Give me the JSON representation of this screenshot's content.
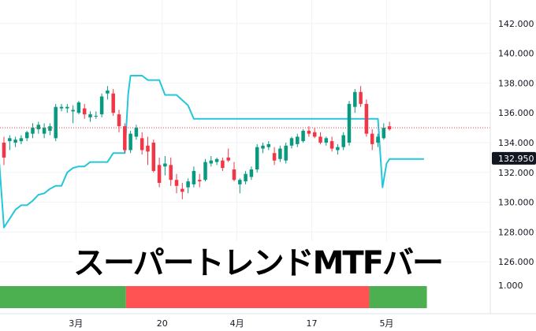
{
  "caption": "スーパートレンドMTFバー",
  "chart_data": {
    "type": "candlestick",
    "colors": {
      "up": "#089981",
      "down": "#f23645",
      "supertrend": "#26c6da",
      "bar_up": "#4caf50",
      "bar_down": "#ff5252",
      "grid": "#f0f3fa",
      "price_label_bg": "#131722",
      "price_line": "#f23645"
    },
    "price_axis": {
      "ticks": [
        "126.000",
        "128.000",
        "130.000",
        "132.000",
        "134.000",
        "136.000",
        "138.000",
        "140.000",
        "142.000"
      ]
    },
    "current_price": {
      "value": 132.95,
      "label": "132.950"
    },
    "ref_line": 135.0,
    "lower_pane_label": "1.000",
    "x_labels": [
      "3月",
      "20",
      "4月",
      "17",
      "5月"
    ],
    "x_label_at": [
      12.5,
      27.5,
      40.5,
      53.5,
      66.5
    ],
    "candles": [
      {
        "o": 134.0,
        "h": 134.4,
        "l": 132.5,
        "c": 133.0
      },
      {
        "o": 134.1,
        "h": 134.5,
        "l": 133.5,
        "c": 134.3
      },
      {
        "o": 134.0,
        "h": 134.4,
        "l": 133.7,
        "c": 134.2
      },
      {
        "o": 134.1,
        "h": 134.5,
        "l": 133.9,
        "c": 134.3
      },
      {
        "o": 134.3,
        "h": 134.8,
        "l": 134.1,
        "c": 134.7
      },
      {
        "o": 134.6,
        "h": 135.3,
        "l": 134.3,
        "c": 135.0
      },
      {
        "o": 134.9,
        "h": 135.4,
        "l": 134.6,
        "c": 135.2
      },
      {
        "o": 134.6,
        "h": 135.3,
        "l": 134.3,
        "c": 135.0
      },
      {
        "o": 134.8,
        "h": 135.3,
        "l": 134.5,
        "c": 135.1
      },
      {
        "o": 134.3,
        "h": 136.6,
        "l": 134.1,
        "c": 136.4
      },
      {
        "o": 136.3,
        "h": 136.6,
        "l": 136.1,
        "c": 136.4
      },
      {
        "o": 136.3,
        "h": 136.6,
        "l": 136.0,
        "c": 136.4
      },
      {
        "o": 136.1,
        "h": 136.5,
        "l": 135.3,
        "c": 136.2
      },
      {
        "o": 136.0,
        "h": 136.8,
        "l": 135.9,
        "c": 136.7
      },
      {
        "o": 136.3,
        "h": 136.6,
        "l": 135.6,
        "c": 135.9
      },
      {
        "o": 135.7,
        "h": 136.1,
        "l": 135.4,
        "c": 135.9
      },
      {
        "o": 135.8,
        "h": 136.1,
        "l": 135.6,
        "c": 135.8
      },
      {
        "o": 135.9,
        "h": 137.3,
        "l": 135.7,
        "c": 137.1
      },
      {
        "o": 137.3,
        "h": 137.8,
        "l": 136.9,
        "c": 137.5
      },
      {
        "o": 137.3,
        "h": 137.6,
        "l": 135.8,
        "c": 136.0
      },
      {
        "o": 135.9,
        "h": 136.2,
        "l": 134.7,
        "c": 135.1
      },
      {
        "o": 135.1,
        "h": 135.3,
        "l": 133.3,
        "c": 133.5
      },
      {
        "o": 133.5,
        "h": 134.8,
        "l": 133.3,
        "c": 134.6
      },
      {
        "o": 134.4,
        "h": 135.2,
        "l": 134.2,
        "c": 135.0
      },
      {
        "o": 134.3,
        "h": 134.7,
        "l": 133.2,
        "c": 133.5
      },
      {
        "o": 133.8,
        "h": 134.4,
        "l": 132.5,
        "c": 133.4
      },
      {
        "o": 134.0,
        "h": 134.2,
        "l": 132.0,
        "c": 132.1
      },
      {
        "o": 132.5,
        "h": 133.0,
        "l": 131.0,
        "c": 131.3
      },
      {
        "o": 132.4,
        "h": 133.1,
        "l": 131.8,
        "c": 132.6
      },
      {
        "o": 132.5,
        "h": 133.0,
        "l": 131.1,
        "c": 131.5
      },
      {
        "o": 131.5,
        "h": 131.9,
        "l": 130.6,
        "c": 131.1
      },
      {
        "o": 130.9,
        "h": 131.3,
        "l": 130.2,
        "c": 130.7
      },
      {
        "o": 131.0,
        "h": 131.6,
        "l": 130.6,
        "c": 131.4
      },
      {
        "o": 131.2,
        "h": 132.4,
        "l": 131.0,
        "c": 132.1
      },
      {
        "o": 131.5,
        "h": 131.9,
        "l": 131.0,
        "c": 131.4
      },
      {
        "o": 131.5,
        "h": 132.9,
        "l": 131.4,
        "c": 132.7
      },
      {
        "o": 132.6,
        "h": 133.1,
        "l": 132.4,
        "c": 132.8
      },
      {
        "o": 132.7,
        "h": 133.0,
        "l": 132.5,
        "c": 132.9
      },
      {
        "o": 132.8,
        "h": 133.0,
        "l": 132.1,
        "c": 132.3
      },
      {
        "o": 133.0,
        "h": 133.6,
        "l": 132.7,
        "c": 132.8
      },
      {
        "o": 132.2,
        "h": 132.7,
        "l": 131.4,
        "c": 131.5
      },
      {
        "o": 131.2,
        "h": 131.6,
        "l": 130.6,
        "c": 131.5
      },
      {
        "o": 131.4,
        "h": 132.1,
        "l": 131.2,
        "c": 131.9
      },
      {
        "o": 131.7,
        "h": 132.4,
        "l": 131.5,
        "c": 132.2
      },
      {
        "o": 132.2,
        "h": 133.9,
        "l": 132.0,
        "c": 133.7
      },
      {
        "o": 133.6,
        "h": 134.0,
        "l": 133.3,
        "c": 133.8
      },
      {
        "o": 133.7,
        "h": 134.1,
        "l": 133.5,
        "c": 133.9
      },
      {
        "o": 133.3,
        "h": 133.7,
        "l": 132.5,
        "c": 132.8
      },
      {
        "o": 132.9,
        "h": 133.8,
        "l": 132.7,
        "c": 133.6
      },
      {
        "o": 132.8,
        "h": 134.0,
        "l": 132.6,
        "c": 133.8
      },
      {
        "o": 133.8,
        "h": 134.4,
        "l": 133.6,
        "c": 134.3
      },
      {
        "o": 133.9,
        "h": 134.6,
        "l": 133.7,
        "c": 134.4
      },
      {
        "o": 134.1,
        "h": 134.9,
        "l": 134.0,
        "c": 134.8
      },
      {
        "o": 134.8,
        "h": 135.1,
        "l": 134.4,
        "c": 134.6
      },
      {
        "o": 134.7,
        "h": 135.0,
        "l": 134.3,
        "c": 134.4
      },
      {
        "o": 134.4,
        "h": 134.7,
        "l": 133.9,
        "c": 134.0
      },
      {
        "o": 134.0,
        "h": 134.4,
        "l": 133.8,
        "c": 134.3
      },
      {
        "o": 134.1,
        "h": 134.4,
        "l": 133.4,
        "c": 133.6
      },
      {
        "o": 133.5,
        "h": 133.9,
        "l": 133.2,
        "c": 133.7
      },
      {
        "o": 133.7,
        "h": 134.7,
        "l": 133.5,
        "c": 134.5
      },
      {
        "o": 134.0,
        "h": 136.8,
        "l": 133.8,
        "c": 136.6
      },
      {
        "o": 136.4,
        "h": 137.6,
        "l": 136.0,
        "c": 137.4
      },
      {
        "o": 137.4,
        "h": 137.8,
        "l": 136.4,
        "c": 136.6
      },
      {
        "o": 136.6,
        "h": 136.9,
        "l": 134.4,
        "c": 134.6
      },
      {
        "o": 134.6,
        "h": 134.9,
        "l": 133.5,
        "c": 133.9
      },
      {
        "o": 134.0,
        "h": 134.6,
        "l": 133.7,
        "c": 134.4
      },
      {
        "o": 134.3,
        "h": 135.3,
        "l": 134.2,
        "c": 135.0
      },
      {
        "o": 135.1,
        "h": 135.4,
        "l": 134.8,
        "c": 134.9
      }
    ],
    "supertrend": [
      [
        -1,
        133.7
      ],
      [
        0,
        128.3
      ],
      [
        1,
        128.9
      ],
      [
        2,
        129.5
      ],
      [
        3,
        129.8
      ],
      [
        4,
        129.8
      ],
      [
        5,
        130.1
      ],
      [
        6,
        130.5
      ],
      [
        7,
        130.6
      ],
      [
        8,
        130.9
      ],
      [
        9,
        131.1
      ],
      [
        10,
        131.1
      ],
      [
        11,
        132.0
      ],
      [
        12,
        132.3
      ],
      [
        13,
        132.4
      ],
      [
        14,
        132.4
      ],
      [
        15,
        132.7
      ],
      [
        16,
        132.7
      ],
      [
        17,
        132.7
      ],
      [
        18,
        132.7
      ],
      [
        19,
        133.3
      ],
      [
        20,
        133.3
      ],
      [
        21,
        133.3
      ],
      [
        21.6,
        137.3
      ],
      [
        22,
        138.5
      ],
      [
        24,
        138.5
      ],
      [
        25,
        138.2
      ],
      [
        27,
        138.2
      ],
      [
        28,
        137.2
      ],
      [
        30,
        137.2
      ],
      [
        32,
        136.5
      ],
      [
        33,
        135.6
      ],
      [
        65,
        135.6
      ],
      [
        65.8,
        131.0
      ],
      [
        66.5,
        132.6
      ],
      [
        67,
        132.9
      ],
      [
        73,
        132.9
      ]
    ],
    "mtf_bar": [
      {
        "from": -1.5,
        "to": 21.2,
        "state": "up"
      },
      {
        "from": 21.2,
        "to": 63.5,
        "state": "down"
      },
      {
        "from": 63.5,
        "to": 73.5,
        "state": "up"
      }
    ]
  }
}
